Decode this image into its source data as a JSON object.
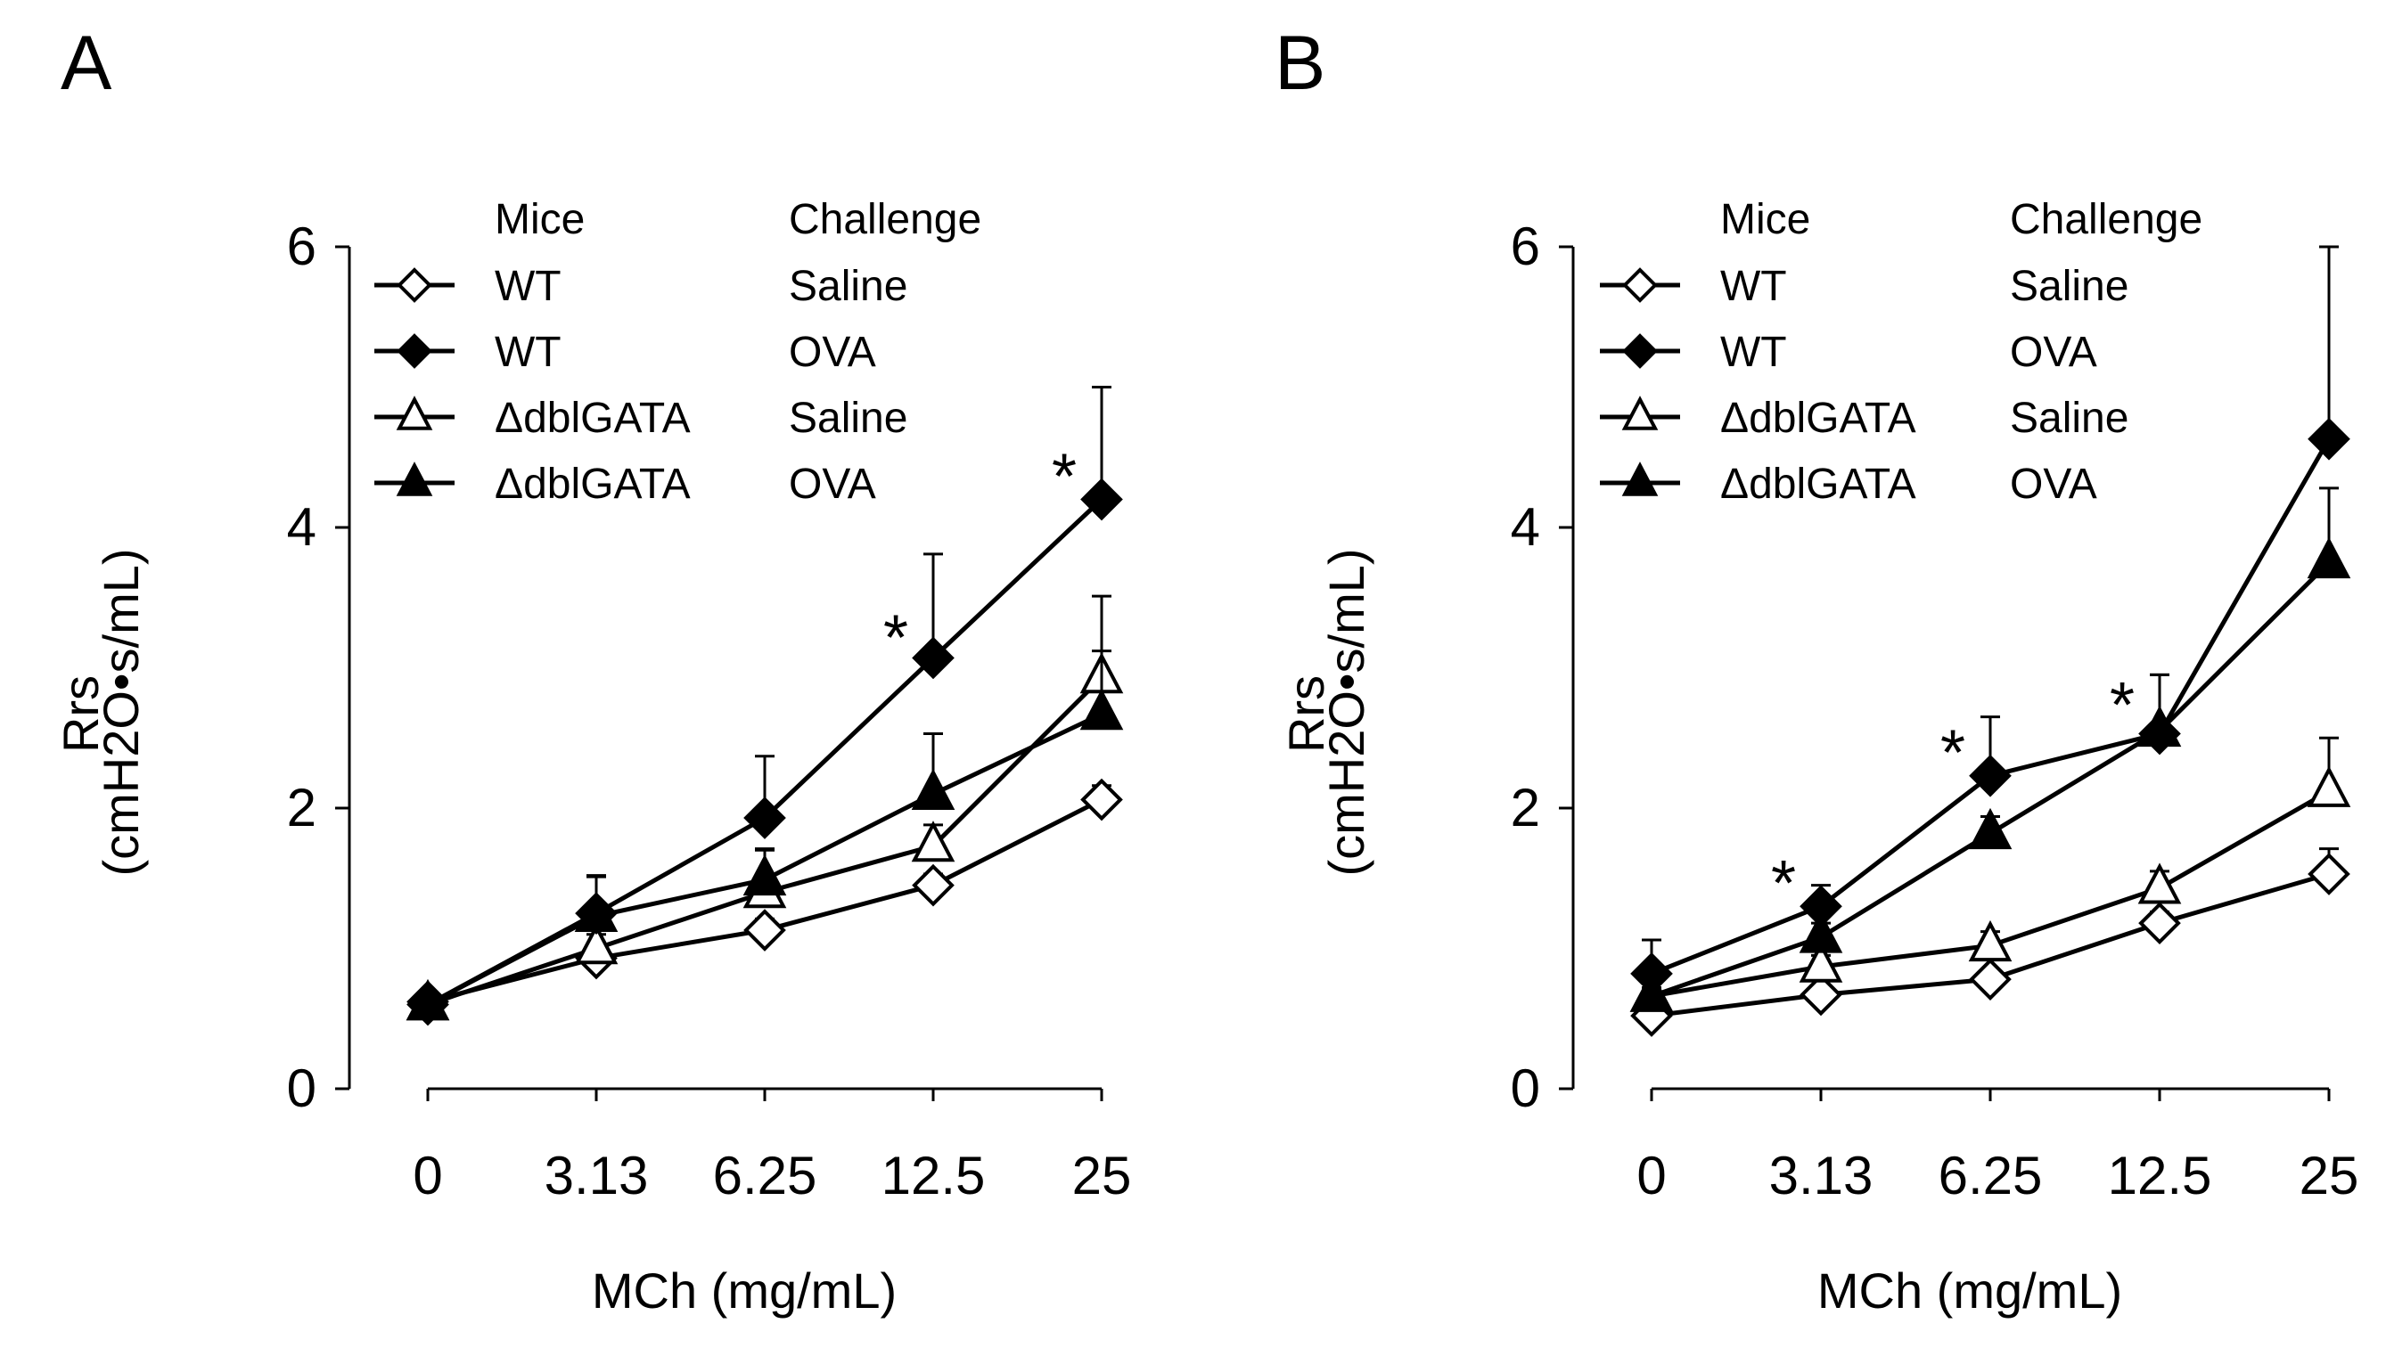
{
  "chart_data": [
    {
      "type": "line",
      "panel_label": "A",
      "xlabel": "MCh (mg/mL)",
      "ylabel_line1": "Rrs",
      "ylabel_line2": "(cmH2O•s/mL)",
      "categories": [
        "0",
        "3.13",
        "6.25",
        "12.5",
        "25"
      ],
      "yticks": [
        "0",
        "2",
        "4",
        "6"
      ],
      "ylim": [
        0,
        6
      ],
      "legend": {
        "header_mice": "Mice",
        "header_challenge": "Challenge",
        "placement": "top-left"
      },
      "series": [
        {
          "mice": "WT",
          "challenge": "Saline",
          "marker": "diamond",
          "filled": false,
          "values": [
            0.62,
            0.93,
            1.13,
            1.45,
            2.06
          ],
          "errors": [
            0.05,
            0.05,
            0.08,
            0.08,
            0.1
          ]
        },
        {
          "mice": "ΔdblGATA",
          "challenge": "Saline",
          "marker": "triangle",
          "filled": false,
          "values": [
            0.6,
            1.0,
            1.4,
            1.73,
            2.93
          ],
          "errors": [
            0.06,
            0.1,
            0.3,
            0.15,
            0.58
          ]
        },
        {
          "mice": "ΔdblGATA",
          "challenge": "OVA",
          "marker": "triangle",
          "filled": true,
          "values": [
            0.6,
            1.23,
            1.49,
            2.1,
            2.67
          ],
          "errors": [
            0.08,
            0.28,
            0.22,
            0.43,
            0.45
          ]
        },
        {
          "mice": "WT",
          "challenge": "OVA",
          "marker": "diamond",
          "filled": true,
          "values": [
            0.6,
            1.25,
            1.93,
            3.07,
            4.2
          ],
          "errors": [
            0.08,
            0.27,
            0.44,
            0.74,
            0.8
          ]
        }
      ],
      "annotations": [
        {
          "category": "12.5",
          "y": 3.35,
          "text": "*"
        },
        {
          "category": "25",
          "y": 4.5,
          "text": "*"
        }
      ]
    },
    {
      "type": "line",
      "panel_label": "B",
      "xlabel": "MCh (mg/mL)",
      "ylabel_line1": "Rrs",
      "ylabel_line2": "(cmH2O•s/mL)",
      "categories": [
        "0",
        "3.13",
        "6.25",
        "12.5",
        "25"
      ],
      "yticks": [
        "0",
        "2",
        "4",
        "6"
      ],
      "ylim": [
        0,
        6
      ],
      "legend": {
        "header_mice": "Mice",
        "header_challenge": "Challenge",
        "placement": "top-left"
      },
      "series": [
        {
          "mice": "WT",
          "challenge": "Saline",
          "marker": "diamond",
          "filled": false,
          "values": [
            0.52,
            0.67,
            0.78,
            1.18,
            1.53
          ],
          "errors": [
            0.04,
            0.05,
            0.06,
            0.08,
            0.18
          ]
        },
        {
          "mice": "ΔdblGATA",
          "challenge": "Saline",
          "marker": "triangle",
          "filled": false,
          "values": [
            0.66,
            0.87,
            1.02,
            1.43,
            2.12
          ],
          "errors": [
            0.06,
            0.08,
            0.1,
            0.12,
            0.38
          ]
        },
        {
          "mice": "ΔdblGATA",
          "challenge": "OVA",
          "marker": "triangle",
          "filled": true,
          "values": [
            0.66,
            1.08,
            1.82,
            2.55,
            3.75
          ],
          "errors": [
            0.06,
            0.1,
            0.12,
            0.4,
            0.53
          ]
        },
        {
          "mice": "WT",
          "challenge": "OVA",
          "marker": "diamond",
          "filled": true,
          "values": [
            0.82,
            1.3,
            2.23,
            2.53,
            4.63
          ],
          "errors": [
            0.24,
            0.15,
            0.42,
            0.42,
            1.37
          ]
        }
      ],
      "annotations": [
        {
          "category": "3.13",
          "y": 1.6,
          "text": "*"
        },
        {
          "category": "6.25",
          "y": 2.53,
          "text": "*"
        },
        {
          "category": "12.5",
          "y": 2.87,
          "text": "*"
        }
      ]
    }
  ]
}
